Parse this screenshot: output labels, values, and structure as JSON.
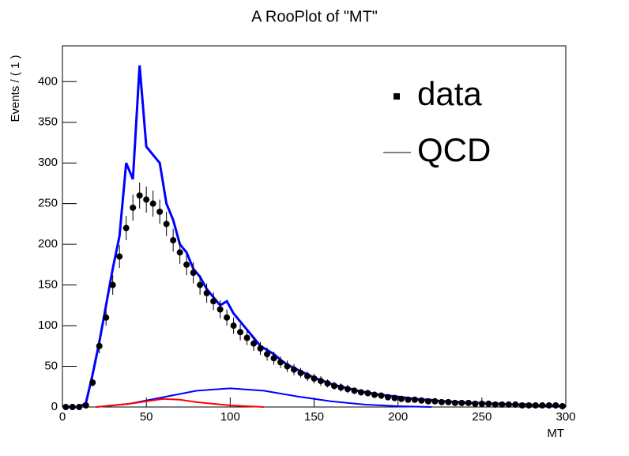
{
  "chart_data": {
    "type": "line",
    "title": "A RooPlot of \"MT\"",
    "xlabel": "MT",
    "ylabel": "Events / ( 1 )",
    "xlim": [
      0,
      300
    ],
    "ylim": [
      0,
      444
    ],
    "xticks": [
      0,
      50,
      100,
      150,
      200,
      250,
      300
    ],
    "yticks": [
      0,
      50,
      100,
      150,
      200,
      250,
      300,
      350,
      400
    ],
    "legend": "upper right",
    "series": [
      {
        "name": "data",
        "color": "#000000",
        "kind": "points",
        "x": [
          2,
          6,
          10,
          14,
          18,
          22,
          26,
          30,
          34,
          38,
          42,
          46,
          50,
          54,
          58,
          62,
          66,
          70,
          74,
          78,
          82,
          86,
          90,
          94,
          98,
          102,
          106,
          110,
          114,
          118,
          122,
          126,
          130,
          134,
          138,
          142,
          146,
          150,
          154,
          158,
          162,
          166,
          170,
          174,
          178,
          182,
          186,
          190,
          194,
          198,
          202,
          206,
          210,
          214,
          218,
          222,
          226,
          230,
          234,
          238,
          242,
          246,
          250,
          254,
          258,
          262,
          266,
          270,
          274,
          278,
          282,
          286,
          290,
          294,
          298
        ],
        "values": [
          0,
          0,
          0,
          2,
          30,
          75,
          110,
          150,
          185,
          220,
          245,
          260,
          255,
          250,
          240,
          225,
          205,
          190,
          175,
          165,
          150,
          140,
          130,
          120,
          110,
          100,
          92,
          85,
          78,
          72,
          65,
          60,
          55,
          50,
          46,
          42,
          38,
          35,
          32,
          29,
          26,
          24,
          22,
          20,
          18,
          17,
          15,
          14,
          12,
          11,
          10,
          9,
          9,
          8,
          7,
          7,
          6,
          6,
          5,
          5,
          5,
          4,
          4,
          4,
          3,
          3,
          3,
          3,
          2,
          2,
          2,
          2,
          2,
          2,
          1
        ],
        "errors": [
          0,
          0,
          0,
          1,
          5,
          9,
          10,
          12,
          14,
          15,
          16,
          16,
          16,
          16,
          15,
          15,
          14,
          14,
          13,
          13,
          12,
          12,
          11,
          11,
          10,
          10,
          10,
          9,
          9,
          8,
          8,
          8,
          7,
          7,
          7,
          6,
          6,
          6,
          6,
          5,
          5,
          5,
          5,
          4,
          4,
          4,
          4,
          4,
          3,
          3,
          3,
          3,
          3,
          3,
          3,
          3,
          2,
          2,
          2,
          2,
          2,
          2,
          2,
          2,
          2,
          2,
          2,
          2,
          2,
          1,
          1,
          1,
          1,
          1,
          1
        ]
      },
      {
        "name": "QCD",
        "color": "#0000ff",
        "kind": "line",
        "width": 3,
        "x": [
          2,
          6,
          10,
          14,
          18,
          22,
          26,
          30,
          34,
          38,
          42,
          46,
          50,
          54,
          58,
          62,
          66,
          70,
          74,
          78,
          82,
          86,
          90,
          94,
          98,
          102,
          106,
          110,
          114,
          118,
          122,
          126,
          130,
          134,
          138,
          142,
          146,
          150,
          154,
          158,
          162,
          166,
          170,
          174,
          178,
          182,
          186,
          190,
          194,
          198,
          202,
          206,
          210,
          214,
          218,
          222,
          226,
          230,
          234,
          238,
          242,
          246,
          250,
          254,
          258,
          262,
          266,
          270,
          274,
          278,
          282,
          286,
          290,
          294,
          298
        ],
        "values": [
          0,
          0,
          0,
          5,
          40,
          80,
          125,
          170,
          210,
          300,
          280,
          420,
          320,
          310,
          300,
          250,
          230,
          200,
          190,
          170,
          160,
          145,
          135,
          125,
          130,
          115,
          105,
          95,
          85,
          75,
          70,
          65,
          58,
          52,
          48,
          44,
          40,
          36,
          33,
          30,
          27,
          25,
          23,
          21,
          19,
          18,
          16,
          15,
          14,
          13,
          12,
          11,
          10,
          9,
          9,
          8,
          7,
          7,
          6,
          6,
          5,
          5,
          5,
          4,
          4,
          4,
          3,
          3,
          3,
          3,
          2,
          2,
          2,
          2,
          1
        ]
      },
      {
        "color": "#0000ff",
        "kind": "line",
        "width": 2,
        "x": [
          20,
          40,
          60,
          80,
          100,
          120,
          140,
          160,
          180,
          200,
          220
        ],
        "values": [
          0,
          4,
          12,
          20,
          23,
          20,
          13,
          7,
          3,
          1,
          0
        ]
      },
      {
        "color": "#ff0000",
        "kind": "line",
        "width": 2,
        "x": [
          20,
          40,
          60,
          70,
          80,
          100,
          120
        ],
        "values": [
          0,
          4,
          10,
          9,
          6,
          2,
          0
        ]
      }
    ]
  }
}
